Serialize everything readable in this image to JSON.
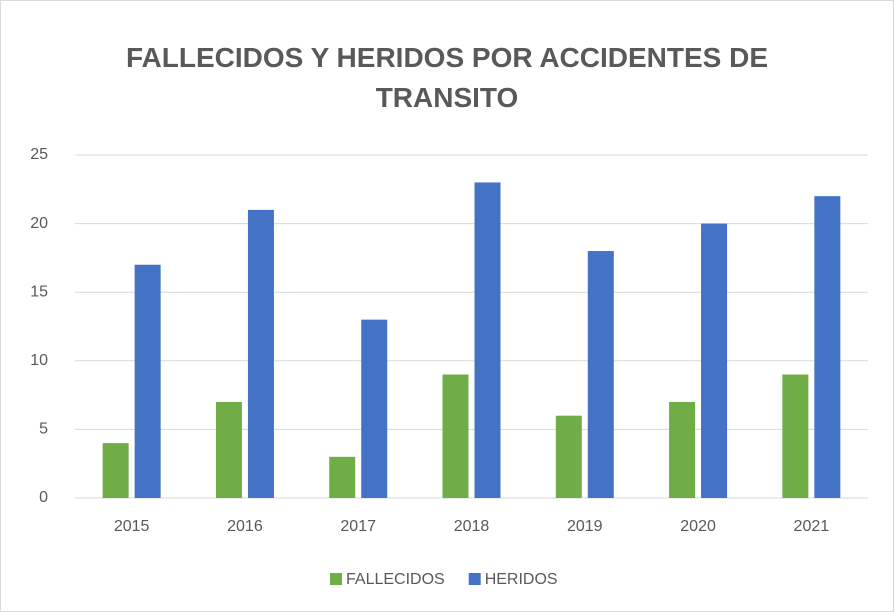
{
  "chart_data": {
    "type": "bar",
    "title": "FALLECIDOS Y HERIDOS POR ACCIDENTES DE TRANSITO",
    "categories": [
      "2015",
      "2016",
      "2017",
      "2018",
      "2019",
      "2020",
      "2021"
    ],
    "series": [
      {
        "name": "FALLECIDOS",
        "color": "#70ad47",
        "values": [
          4,
          7,
          3,
          9,
          6,
          7,
          9
        ]
      },
      {
        "name": "HERIDOS",
        "color": "#4472c4",
        "values": [
          17,
          21,
          13,
          23,
          18,
          20,
          22
        ]
      }
    ],
    "ylim": [
      0,
      25
    ],
    "yticks": [
      0,
      5,
      10,
      15,
      20,
      25
    ],
    "grid": true,
    "legend": "bottom"
  }
}
